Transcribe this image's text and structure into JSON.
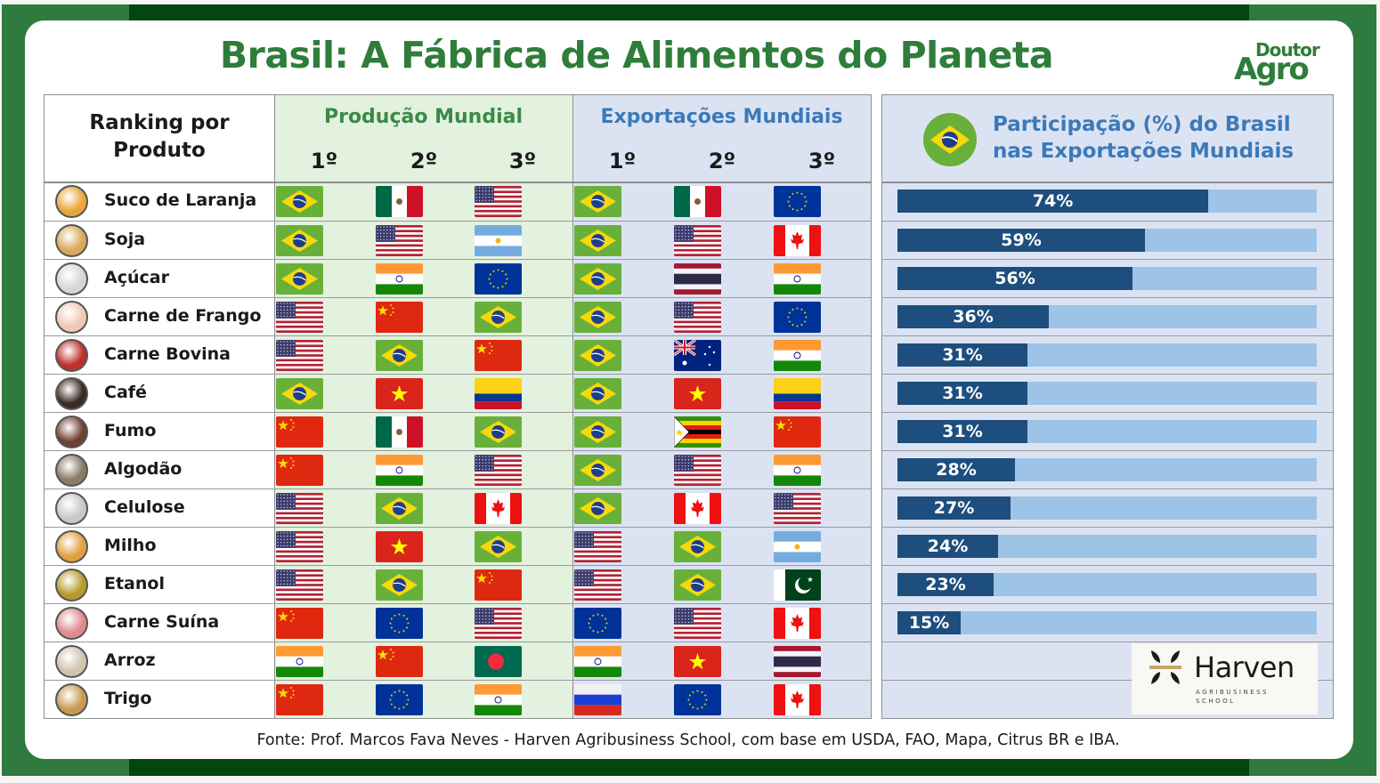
{
  "title": "Brasil: A Fábrica de Alimentos do Planeta",
  "logo": {
    "line1": "Doutor",
    "line2": "Agro"
  },
  "table": {
    "rank_header_line1": "Ranking por",
    "rank_header_line2": "Produto",
    "production_title": "Produção Mundial",
    "exports_title": "Exportações Mundiais",
    "rank_labels": [
      "1º",
      "2º",
      "3º"
    ]
  },
  "panel": {
    "title_line1": "Participação (%) do Brasil",
    "title_line2": "nas Exportações Mundiais"
  },
  "products": [
    {
      "name": "Suco de Laranja",
      "thumb_color": "#e8a63a",
      "production": [
        "Brazil",
        "Mexico",
        "USA"
      ],
      "exports": [
        "Brazil",
        "Mexico",
        "EU"
      ],
      "share": 74,
      "share_label": "74%"
    },
    {
      "name": "Soja",
      "thumb_color": "#d9a85a",
      "production": [
        "Brazil",
        "USA",
        "Argentina"
      ],
      "exports": [
        "Brazil",
        "USA",
        "Canada"
      ],
      "share": 59,
      "share_label": "59%"
    },
    {
      "name": "Açúcar",
      "thumb_color": "#d6d6d6",
      "production": [
        "Brazil",
        "India",
        "EU"
      ],
      "exports": [
        "Brazil",
        "Thailand",
        "India"
      ],
      "share": 56,
      "share_label": "56%"
    },
    {
      "name": "Carne de Frango",
      "thumb_color": "#f0c8b8",
      "production": [
        "USA",
        "China",
        "Brazil"
      ],
      "exports": [
        "Brazil",
        "USA",
        "EU"
      ],
      "share": 36,
      "share_label": "36%"
    },
    {
      "name": "Carne Bovina",
      "thumb_color": "#c0302a",
      "production": [
        "USA",
        "Brazil",
        "China"
      ],
      "exports": [
        "Brazil",
        "Australia",
        "India"
      ],
      "share": 31,
      "share_label": "31%"
    },
    {
      "name": "Café",
      "thumb_color": "#3a2a22",
      "production": [
        "Brazil",
        "Vietnam",
        "Colombia"
      ],
      "exports": [
        "Brazil",
        "Vietnam",
        "Colombia"
      ],
      "share": 31,
      "share_label": "31%"
    },
    {
      "name": "Fumo",
      "thumb_color": "#6e4030",
      "production": [
        "China",
        "Mexico",
        "Brazil"
      ],
      "exports": [
        "Brazil",
        "Zimbabwe",
        "China"
      ],
      "share": 31,
      "share_label": "31%"
    },
    {
      "name": "Algodão",
      "thumb_color": "#8a7a68",
      "production": [
        "China",
        "India",
        "USA"
      ],
      "exports": [
        "Brazil",
        "USA",
        "India"
      ],
      "share": 28,
      "share_label": "28%"
    },
    {
      "name": "Celulose",
      "thumb_color": "#c8c8c8",
      "production": [
        "USA",
        "Brazil",
        "Canada"
      ],
      "exports": [
        "Brazil",
        "Canada",
        "USA"
      ],
      "share": 27,
      "share_label": "27%"
    },
    {
      "name": "Milho",
      "thumb_color": "#e0a040",
      "production": [
        "USA",
        "Vietnam",
        "Brazil"
      ],
      "exports": [
        "USA",
        "Brazil",
        "Argentina"
      ],
      "share": 24,
      "share_label": "24%"
    },
    {
      "name": "Etanol",
      "thumb_color": "#b89a2a",
      "production": [
        "USA",
        "Brazil",
        "China"
      ],
      "exports": [
        "USA",
        "Brazil",
        "Pakistan"
      ],
      "share": 23,
      "share_label": "23%"
    },
    {
      "name": "Carne Suína",
      "thumb_color": "#e08a90",
      "production": [
        "China",
        "EU",
        "USA"
      ],
      "exports": [
        "EU",
        "USA",
        "Canada"
      ],
      "share": 15,
      "share_label": "15%"
    },
    {
      "name": "Arroz",
      "thumb_color": "#cfc4ae",
      "production": [
        "India",
        "China",
        "Bangladesh"
      ],
      "exports": [
        "India",
        "Vietnam",
        "Thailand"
      ],
      "share": null,
      "share_label": ""
    },
    {
      "name": "Trigo",
      "thumb_color": "#c89a50",
      "production": [
        "China",
        "EU",
        "India"
      ],
      "exports": [
        "Russia",
        "EU",
        "Canada"
      ],
      "share": null,
      "share_label": ""
    }
  ],
  "harven": {
    "name": "Harven",
    "sub1": "AGRIBUSINESS",
    "sub2": "SCHOOL"
  },
  "source": "Fonte: Prof. Marcos Fava Neves  - Harven Agribusiness School, com base em USDA, FAO, Mapa, Citrus BR e IBA.",
  "colors": {
    "title_green": "#2e7d3a",
    "frame_green": "#2f7a3e",
    "frame_dark": "#04460e",
    "production_bg": "#e3f1df",
    "exports_bg": "#dbe3f3",
    "bar_fill": "#1d4e7d",
    "bar_track": "#9dc3e6",
    "exports_title": "#3c79b8"
  },
  "chart_data": {
    "type": "bar",
    "orientation": "horizontal",
    "title": "Participação (%) do Brasil nas Exportações Mundiais",
    "categories": [
      "Suco de Laranja",
      "Soja",
      "Açúcar",
      "Carne de Frango",
      "Carne Bovina",
      "Café",
      "Fumo",
      "Algodão",
      "Celulose",
      "Milho",
      "Etanol",
      "Carne Suína"
    ],
    "values": [
      74,
      59,
      56,
      36,
      31,
      31,
      31,
      28,
      27,
      24,
      23,
      15
    ],
    "xlabel": "",
    "ylabel": "",
    "xlim": [
      0,
      100
    ],
    "unit": "%",
    "grid": false,
    "legend": null
  }
}
